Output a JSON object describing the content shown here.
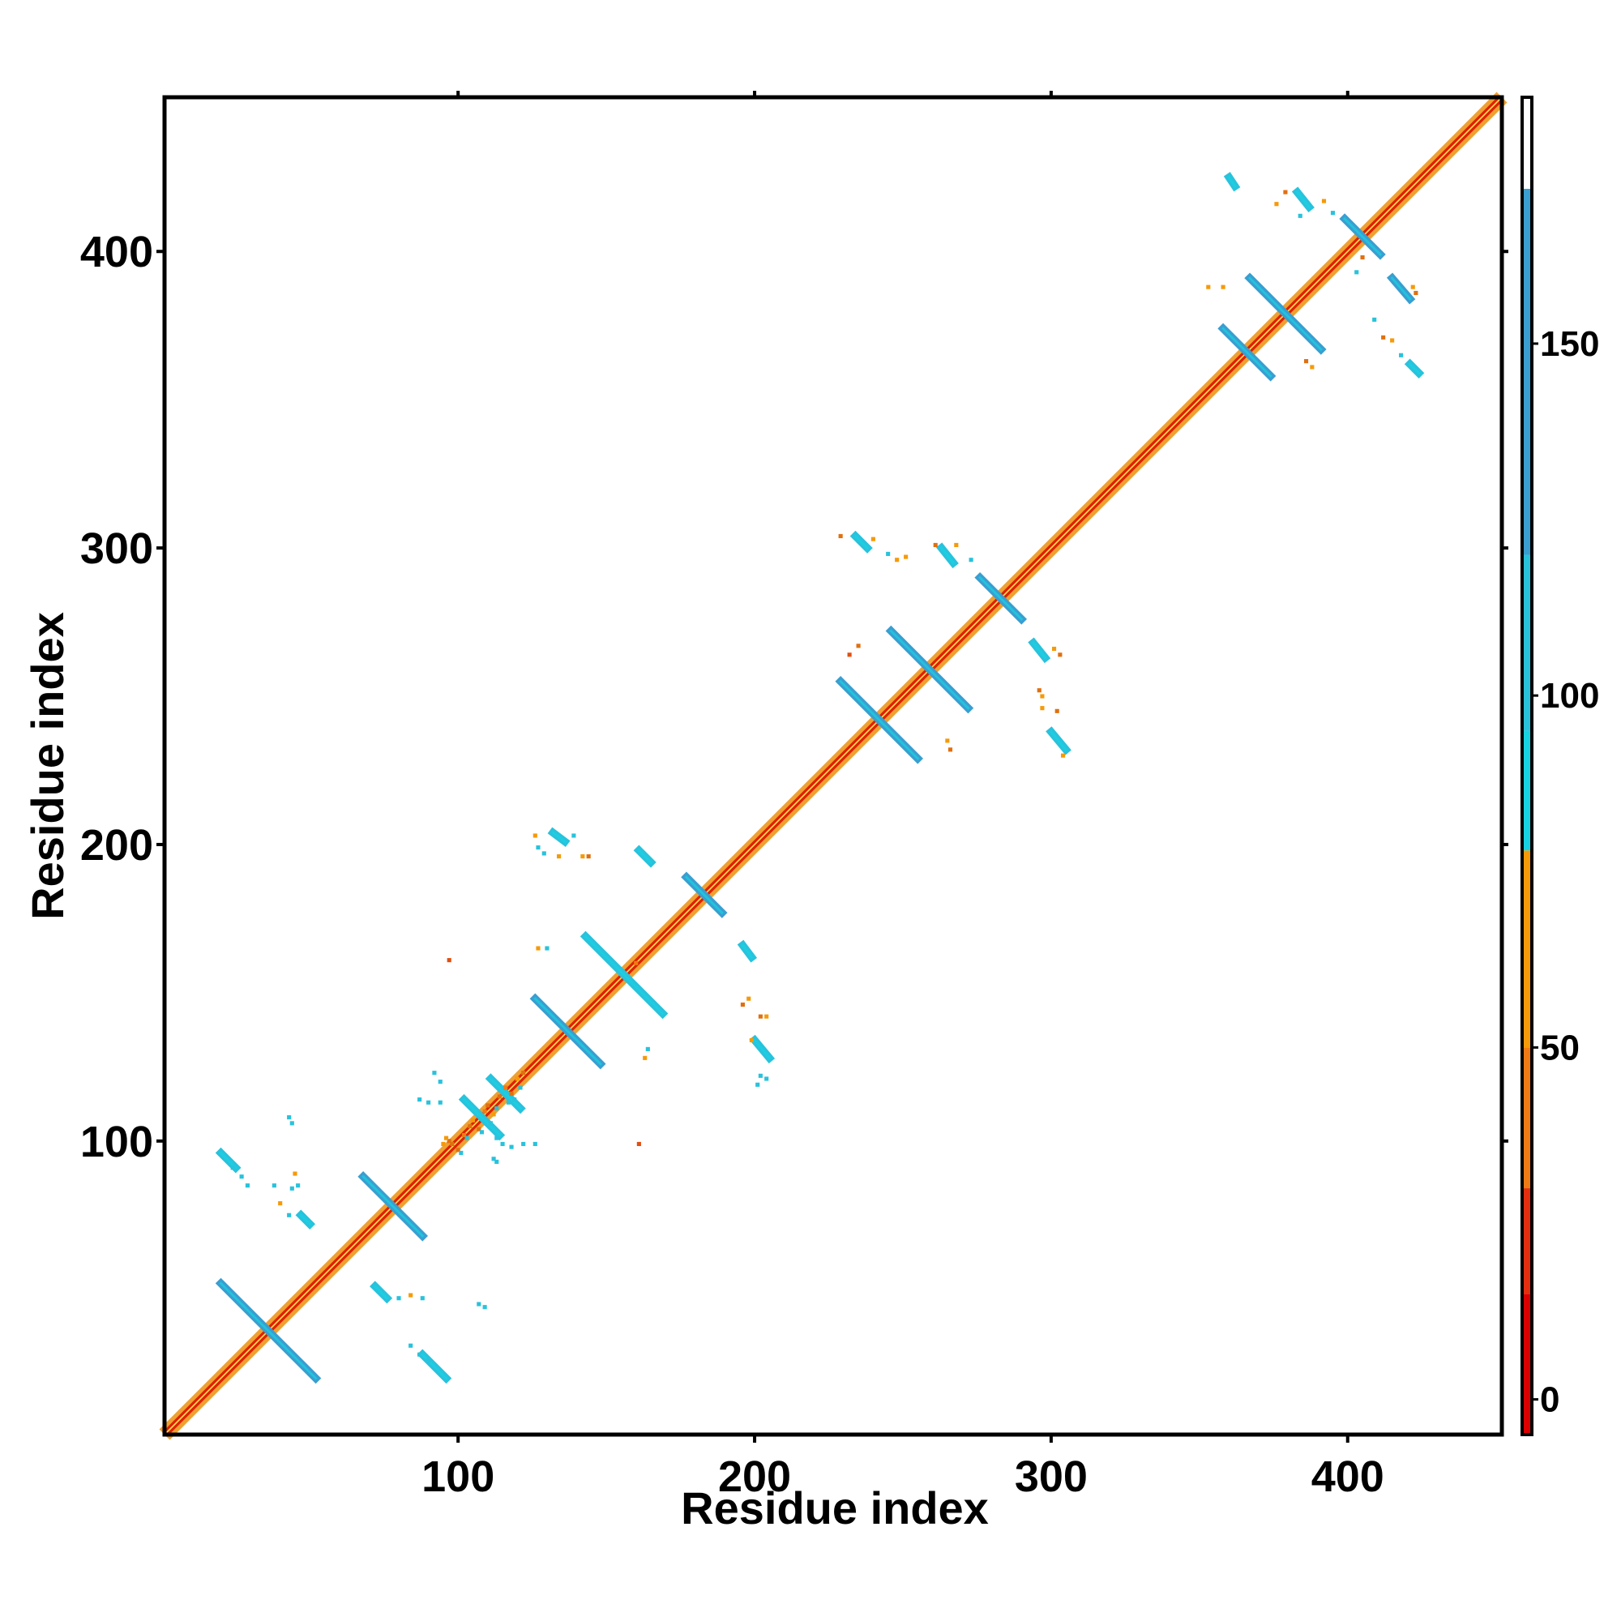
{
  "chart_data": {
    "type": "heatmap",
    "subtype": "contact-map",
    "xlabel": "Residue index",
    "ylabel": "Residue index",
    "xlim": [
      1,
      452
    ],
    "ylim": [
      1,
      452
    ],
    "x_ticks": [
      100,
      200,
      300,
      400
    ],
    "y_ticks": [
      100,
      200,
      300,
      400
    ],
    "grid": false,
    "colorbar": {
      "position": "right",
      "range": [
        -5,
        185
      ],
      "ticks": [
        0,
        50,
        100,
        150
      ],
      "bands": [
        {
          "from": -5,
          "to": 15,
          "color": "#dd0000"
        },
        {
          "from": 15,
          "to": 30,
          "color": "#e32f0f"
        },
        {
          "from": 30,
          "to": 50,
          "color": "#f07a14"
        },
        {
          "from": 50,
          "to": 78,
          "color": "#f59a08"
        },
        {
          "from": 78,
          "to": 95,
          "color": "#17d3e2"
        },
        {
          "from": 95,
          "to": 120,
          "color": "#29c2dc"
        },
        {
          "from": 120,
          "to": 172,
          "color": "#3a9ed0"
        },
        {
          "from": 172,
          "to": 185,
          "color": "#ffffff"
        }
      ]
    },
    "diagonal": {
      "from": 1,
      "to": 452,
      "inner_color": "#dd2200",
      "outer_color": "#f0a030"
    },
    "features": [
      {
        "kind": "antiparallel",
        "center": [
          36,
          36
        ],
        "half_length": 16,
        "color": "#3a9ed0"
      },
      {
        "kind": "antiparallel",
        "center": [
          78,
          78
        ],
        "half_length": 10,
        "color": "#3a9ed0"
      },
      {
        "kind": "antiparallel",
        "center": [
          137,
          137
        ],
        "half_length": 11,
        "color": "#3a9ed0"
      },
      {
        "kind": "antiparallel",
        "center": [
          156,
          156
        ],
        "half_length": 13,
        "color": "#29c2dc"
      },
      {
        "kind": "antiparallel",
        "center": [
          183,
          183
        ],
        "half_length": 6,
        "color": "#3a9ed0"
      },
      {
        "kind": "antiparallel",
        "center": [
          242,
          242
        ],
        "half_length": 13,
        "color": "#3a9ed0"
      },
      {
        "kind": "antiparallel",
        "center": [
          259,
          259
        ],
        "half_length": 13,
        "color": "#3a9ed0"
      },
      {
        "kind": "antiparallel",
        "center": [
          283,
          283
        ],
        "half_length": 7,
        "color": "#3a9ed0"
      },
      {
        "kind": "antiparallel",
        "center": [
          366,
          366
        ],
        "half_length": 8,
        "color": "#3a9ed0"
      },
      {
        "kind": "antiparallel",
        "center": [
          379,
          379
        ],
        "half_length": 12,
        "color": "#3a9ed0"
      },
      {
        "kind": "antiparallel",
        "center": [
          405,
          405
        ],
        "half_length": 6,
        "color": "#3a9ed0"
      },
      {
        "kind": "antiparallel",
        "center": [
          108,
          108
        ],
        "half_length": 6,
        "color": "#29c2dc"
      },
      {
        "kind": "antiparallel",
        "center": [
          116,
          116
        ],
        "half_length": 5,
        "color": "#29c2dc"
      },
      {
        "kind": "parallel",
        "start": [
          20,
          96
        ],
        "end": [
          25,
          91
        ],
        "color": "#29c2dc"
      },
      {
        "kind": "parallel",
        "start": [
          47,
          75
        ],
        "end": [
          50,
          72
        ],
        "color": "#29c2dc"
      },
      {
        "kind": "parallel",
        "start": [
          72,
          51
        ],
        "end": [
          76,
          47
        ],
        "color": "#29c2dc"
      },
      {
        "kind": "parallel",
        "start": [
          88,
          28
        ],
        "end": [
          96,
          20
        ],
        "color": "#29c2dc"
      },
      {
        "kind": "parallel",
        "start": [
          132,
          204
        ],
        "end": [
          136,
          201
        ],
        "color": "#29c2dc"
      },
      {
        "kind": "parallel",
        "start": [
          161,
          198
        ],
        "end": [
          165,
          194
        ],
        "color": "#29c2dc"
      },
      {
        "kind": "parallel",
        "start": [
          196,
          166
        ],
        "end": [
          199,
          162
        ],
        "color": "#29c2dc"
      },
      {
        "kind": "parallel",
        "start": [
          200,
          134
        ],
        "end": [
          205,
          128
        ],
        "color": "#29c2dc"
      },
      {
        "kind": "parallel",
        "start": [
          234,
          304
        ],
        "end": [
          238,
          300
        ],
        "color": "#29c2dc"
      },
      {
        "kind": "parallel",
        "start": [
          263,
          300
        ],
        "end": [
          267,
          295
        ],
        "color": "#29c2dc"
      },
      {
        "kind": "parallel",
        "start": [
          294,
          268
        ],
        "end": [
          298,
          263
        ],
        "color": "#29c2dc"
      },
      {
        "kind": "parallel",
        "start": [
          300,
          238
        ],
        "end": [
          305,
          232
        ],
        "color": "#29c2dc"
      },
      {
        "kind": "parallel",
        "start": [
          360,
          425
        ],
        "end": [
          362,
          422
        ],
        "color": "#29c2dc"
      },
      {
        "kind": "parallel",
        "start": [
          383,
          420
        ],
        "end": [
          387,
          415
        ],
        "color": "#29c2dc"
      },
      {
        "kind": "parallel",
        "start": [
          415,
          391
        ],
        "end": [
          421,
          384
        ],
        "color": "#3a9ed0"
      },
      {
        "kind": "parallel",
        "start": [
          421,
          362
        ],
        "end": [
          424,
          359
        ],
        "color": "#29c2dc"
      }
    ],
    "specks": [
      {
        "x": 97,
        "y": 100,
        "color": "#e07010"
      },
      {
        "x": 98,
        "y": 99,
        "color": "#e07010"
      },
      {
        "x": 96,
        "y": 101,
        "color": "#f59a08"
      },
      {
        "x": 95,
        "y": 99,
        "color": "#f59a08"
      },
      {
        "x": 100,
        "y": 97,
        "color": "#e07010"
      },
      {
        "x": 102,
        "y": 102,
        "color": "#f07a14"
      },
      {
        "x": 104,
        "y": 105,
        "color": "#e07010"
      },
      {
        "x": 105,
        "y": 107,
        "color": "#f59a08"
      },
      {
        "x": 107,
        "y": 104,
        "color": "#e07010"
      },
      {
        "x": 109,
        "y": 110,
        "color": "#f07a14"
      },
      {
        "x": 110,
        "y": 112,
        "color": "#e07010"
      },
      {
        "x": 112,
        "y": 109,
        "color": "#f59a08"
      },
      {
        "x": 114,
        "y": 115,
        "color": "#e07010"
      },
      {
        "x": 116,
        "y": 118,
        "color": "#f07a14"
      },
      {
        "x": 118,
        "y": 116,
        "color": "#e07010"
      },
      {
        "x": 120,
        "y": 121,
        "color": "#f59a08"
      },
      {
        "x": 122,
        "y": 123,
        "color": "#e07010"
      },
      {
        "x": 101,
        "y": 96,
        "color": "#29c2dc"
      },
      {
        "x": 103,
        "y": 101,
        "color": "#29c2dc"
      },
      {
        "x": 108,
        "y": 103,
        "color": "#29c2dc"
      },
      {
        "x": 111,
        "y": 106,
        "color": "#29c2dc"
      },
      {
        "x": 113,
        "y": 111,
        "color": "#29c2dc"
      },
      {
        "x": 117,
        "y": 113,
        "color": "#29c2dc"
      },
      {
        "x": 119,
        "y": 114,
        "color": "#29c2dc"
      },
      {
        "x": 121,
        "y": 118,
        "color": "#29c2dc"
      },
      {
        "x": 160,
        "y": 160,
        "color": "#f07a14"
      },
      {
        "x": 161,
        "y": 99,
        "color": "#e05010"
      },
      {
        "x": 97,
        "y": 161,
        "color": "#e05010"
      },
      {
        "x": 24,
        "y": 91,
        "color": "#29c2dc"
      },
      {
        "x": 27,
        "y": 88,
        "color": "#29c2dc"
      },
      {
        "x": 29,
        "y": 85,
        "color": "#29c2dc"
      },
      {
        "x": 38,
        "y": 85,
        "color": "#29c2dc"
      },
      {
        "x": 44,
        "y": 84,
        "color": "#29c2dc"
      },
      {
        "x": 45,
        "y": 89,
        "color": "#f59a08"
      },
      {
        "x": 46,
        "y": 85,
        "color": "#29c2dc"
      },
      {
        "x": 40,
        "y": 79,
        "color": "#f59a08"
      },
      {
        "x": 43,
        "y": 75,
        "color": "#29c2dc"
      },
      {
        "x": 43,
        "y": 108,
        "color": "#29c2dc"
      },
      {
        "x": 44,
        "y": 106,
        "color": "#29c2dc"
      },
      {
        "x": 80,
        "y": 47,
        "color": "#29c2dc"
      },
      {
        "x": 84,
        "y": 48,
        "color": "#f59a08"
      },
      {
        "x": 88,
        "y": 47,
        "color": "#29c2dc"
      },
      {
        "x": 107,
        "y": 45,
        "color": "#29c2dc"
      },
      {
        "x": 109,
        "y": 44,
        "color": "#29c2dc"
      },
      {
        "x": 84,
        "y": 31,
        "color": "#29c2dc"
      },
      {
        "x": 87,
        "y": 28,
        "color": "#29c2dc"
      },
      {
        "x": 90,
        "y": 26,
        "color": "#29c2dc"
      },
      {
        "x": 92,
        "y": 123,
        "color": "#29c2dc"
      },
      {
        "x": 94,
        "y": 120,
        "color": "#29c2dc"
      },
      {
        "x": 87,
        "y": 114,
        "color": "#29c2dc"
      },
      {
        "x": 90,
        "y": 113,
        "color": "#29c2dc"
      },
      {
        "x": 94,
        "y": 113,
        "color": "#29c2dc"
      },
      {
        "x": 113,
        "y": 101,
        "color": "#29c2dc"
      },
      {
        "x": 115,
        "y": 99,
        "color": "#29c2dc"
      },
      {
        "x": 118,
        "y": 98,
        "color": "#29c2dc"
      },
      {
        "x": 122,
        "y": 99,
        "color": "#29c2dc"
      },
      {
        "x": 112,
        "y": 94,
        "color": "#29c2dc"
      },
      {
        "x": 113,
        "y": 93,
        "color": "#29c2dc"
      },
      {
        "x": 126,
        "y": 99,
        "color": "#29c2dc"
      },
      {
        "x": 126,
        "y": 203,
        "color": "#f59a08"
      },
      {
        "x": 127,
        "y": 199,
        "color": "#29c2dc"
      },
      {
        "x": 129,
        "y": 197,
        "color": "#29c2dc"
      },
      {
        "x": 139,
        "y": 203,
        "color": "#29c2dc"
      },
      {
        "x": 142,
        "y": 196,
        "color": "#f59a08"
      },
      {
        "x": 144,
        "y": 196,
        "color": "#e07010"
      },
      {
        "x": 134,
        "y": 196,
        "color": "#f59a08"
      },
      {
        "x": 127,
        "y": 165,
        "color": "#f59a08"
      },
      {
        "x": 130,
        "y": 165,
        "color": "#29c2dc"
      },
      {
        "x": 163,
        "y": 128,
        "color": "#f59a08"
      },
      {
        "x": 164,
        "y": 131,
        "color": "#29c2dc"
      },
      {
        "x": 196,
        "y": 146,
        "color": "#e07010"
      },
      {
        "x": 198,
        "y": 148,
        "color": "#f59a08"
      },
      {
        "x": 202,
        "y": 142,
        "color": "#e07010"
      },
      {
        "x": 204,
        "y": 142,
        "color": "#f59a08"
      },
      {
        "x": 199,
        "y": 134,
        "color": "#f59a08"
      },
      {
        "x": 202,
        "y": 122,
        "color": "#29c2dc"
      },
      {
        "x": 201,
        "y": 119,
        "color": "#29c2dc"
      },
      {
        "x": 204,
        "y": 121,
        "color": "#29c2dc"
      },
      {
        "x": 229,
        "y": 304,
        "color": "#e07010"
      },
      {
        "x": 240,
        "y": 303,
        "color": "#f59a08"
      },
      {
        "x": 245,
        "y": 298,
        "color": "#29c2dc"
      },
      {
        "x": 248,
        "y": 296,
        "color": "#f59a08"
      },
      {
        "x": 251,
        "y": 297,
        "color": "#f59a08"
      },
      {
        "x": 261,
        "y": 301,
        "color": "#e07010"
      },
      {
        "x": 268,
        "y": 301,
        "color": "#f59a08"
      },
      {
        "x": 273,
        "y": 296,
        "color": "#29c2dc"
      },
      {
        "x": 235,
        "y": 267,
        "color": "#e07010"
      },
      {
        "x": 232,
        "y": 264,
        "color": "#e05010"
      },
      {
        "x": 266,
        "y": 232,
        "color": "#e07010"
      },
      {
        "x": 265,
        "y": 235,
        "color": "#f59a08"
      },
      {
        "x": 301,
        "y": 266,
        "color": "#f59a08"
      },
      {
        "x": 303,
        "y": 264,
        "color": "#e07010"
      },
      {
        "x": 296,
        "y": 252,
        "color": "#e07010"
      },
      {
        "x": 297,
        "y": 250,
        "color": "#f59a08"
      },
      {
        "x": 297,
        "y": 246,
        "color": "#f59a08"
      },
      {
        "x": 302,
        "y": 245,
        "color": "#e07010"
      },
      {
        "x": 304,
        "y": 230,
        "color": "#f59a08"
      },
      {
        "x": 353,
        "y": 388,
        "color": "#f59a08"
      },
      {
        "x": 358,
        "y": 388,
        "color": "#f59a08"
      },
      {
        "x": 379,
        "y": 420,
        "color": "#e07010"
      },
      {
        "x": 376,
        "y": 416,
        "color": "#f59a08"
      },
      {
        "x": 384,
        "y": 412,
        "color": "#29c2dc"
      },
      {
        "x": 392,
        "y": 417,
        "color": "#f59a08"
      },
      {
        "x": 395,
        "y": 413,
        "color": "#29c2dc"
      },
      {
        "x": 388,
        "y": 361,
        "color": "#f59a08"
      },
      {
        "x": 386,
        "y": 363,
        "color": "#e07010"
      },
      {
        "x": 405,
        "y": 398,
        "color": "#e07010"
      },
      {
        "x": 403,
        "y": 393,
        "color": "#29c2dc"
      },
      {
        "x": 409,
        "y": 377,
        "color": "#29c2dc"
      },
      {
        "x": 412,
        "y": 371,
        "color": "#e07010"
      },
      {
        "x": 415,
        "y": 370,
        "color": "#f59a08"
      },
      {
        "x": 423,
        "y": 386,
        "color": "#e07010"
      },
      {
        "x": 422,
        "y": 388,
        "color": "#f59a08"
      },
      {
        "x": 418,
        "y": 365,
        "color": "#29c2dc"
      }
    ]
  }
}
